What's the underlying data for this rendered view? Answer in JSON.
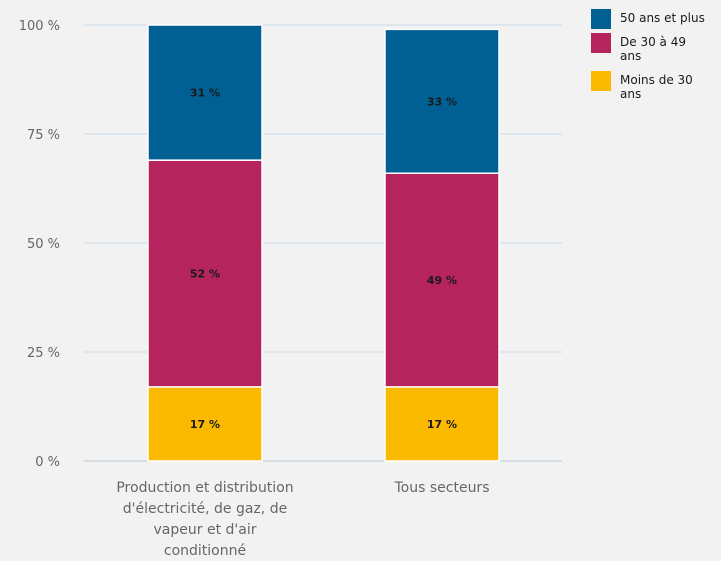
{
  "chart_data": {
    "type": "bar",
    "stacked": true,
    "orientation": "vertical",
    "categories": [
      [
        "Production et distribution",
        "d'électricité, de gaz, de",
        "vapeur et d'air",
        "conditionné"
      ],
      [
        "Tous secteurs"
      ]
    ],
    "series": [
      {
        "name": "Moins de 30 ans",
        "legend_lines": [
          "Moins de 30",
          "ans"
        ],
        "values": [
          17,
          17
        ],
        "labels": [
          "17 %",
          "17 %"
        ],
        "color": "#fbba00"
      },
      {
        "name": "De 30 à 49 ans",
        "legend_lines": [
          "De 30 à 49",
          "ans"
        ],
        "values": [
          52,
          49
        ],
        "labels": [
          "52 %",
          "49 %"
        ],
        "color": "#b5245c"
      },
      {
        "name": "50 ans et plus",
        "legend_lines": [
          "50 ans et plus"
        ],
        "values": [
          31,
          33
        ],
        "labels": [
          "31 %",
          "33 %"
        ],
        "color": "#006094"
      }
    ],
    "ylim": [
      0,
      100
    ],
    "yticks": [
      0,
      25,
      50,
      75,
      100
    ],
    "ytick_labels": [
      "0 %",
      "25 %",
      "50 %",
      "75 %",
      "100 %"
    ],
    "grid": true,
    "legend_position": "top-right",
    "legend_order": [
      "50 ans et plus",
      "De 30 à 49 ans",
      "Moins de 30 ans"
    ],
    "title": "",
    "xlabel": "",
    "ylabel": ""
  }
}
